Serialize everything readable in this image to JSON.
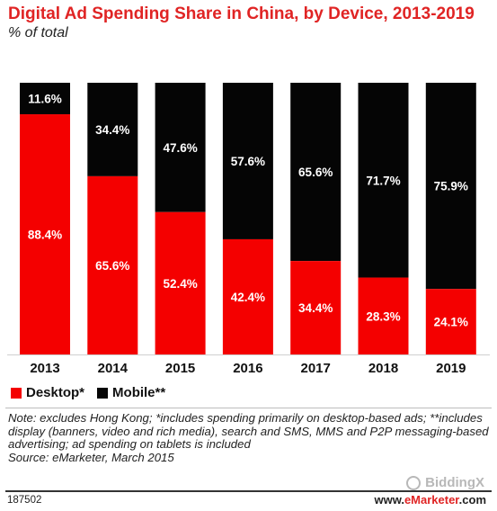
{
  "header": {
    "title": "Digital Ad Spending Share in China, by Device, 2013-2019",
    "subtitle": "% of total"
  },
  "colors": {
    "desktop": "#f40000",
    "mobile": "#050505",
    "title": "#e02424"
  },
  "legend": {
    "desktop": "Desktop*",
    "mobile": "Mobile**"
  },
  "chart_data": {
    "type": "bar",
    "stacked": true,
    "categories": [
      "2013",
      "2014",
      "2015",
      "2016",
      "2017",
      "2018",
      "2019"
    ],
    "series": [
      {
        "name": "Desktop*",
        "values": [
          88.4,
          65.6,
          52.4,
          42.4,
          34.4,
          28.3,
          24.1
        ]
      },
      {
        "name": "Mobile**",
        "values": [
          11.6,
          34.4,
          47.6,
          57.6,
          65.6,
          71.7,
          75.9
        ]
      }
    ],
    "value_labels": {
      "desktop": [
        "88.4%",
        "65.6%",
        "52.4%",
        "42.4%",
        "34.4%",
        "28.3%",
        "24.1%"
      ],
      "mobile": [
        "11.6%",
        "34.4%",
        "47.6%",
        "57.6%",
        "65.6%",
        "71.7%",
        "75.9%"
      ]
    },
    "title": "Digital Ad Spending Share in China, by Device, 2013-2019",
    "ylabel": "",
    "ylim": [
      0,
      100
    ],
    "legend_position": "bottom-left",
    "grid": false
  },
  "notes": {
    "line1": "Note: excludes Hong Kong; *includes spending primarily on desktop-based ads; **includes display (banners, video and rich media), search and SMS, MMS and P2P messaging-based advertising; ad spending on tablets is included",
    "source": "Source: eMarketer, March 2015"
  },
  "footer": {
    "id": "187502",
    "brand_prefix": "www.",
    "brand_name": "eMarketer",
    "brand_suffix": ".com",
    "watermark": "BiddingX"
  }
}
